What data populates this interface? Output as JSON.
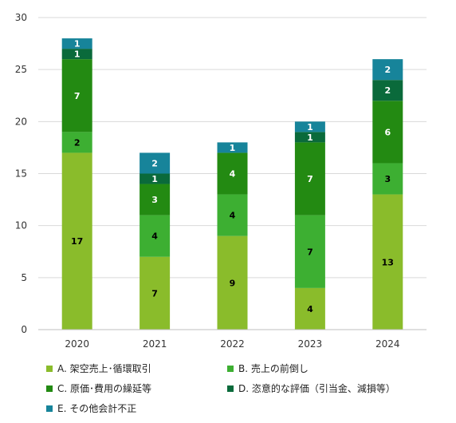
{
  "chart_data": {
    "type": "stacked-bar",
    "title": "",
    "xlabel": "",
    "ylabel": "",
    "categories": [
      "2020",
      "2021",
      "2022",
      "2023",
      "2024"
    ],
    "ylim": [
      0,
      30
    ],
    "yticks": [
      0,
      5,
      10,
      15,
      20,
      25,
      30
    ],
    "grid": true,
    "legend_position": "bottom",
    "series": [
      {
        "name": "A. 架空売上･循環取引",
        "color": "#8ABC2B",
        "label_color": "#000000",
        "values": [
          17,
          7,
          9,
          4,
          13
        ]
      },
      {
        "name": "B. 売上の前倒し",
        "color": "#3DAF32",
        "label_color": "#000000",
        "values": [
          2,
          4,
          4,
          7,
          3
        ]
      },
      {
        "name": "C. 原価･費用の繰延等",
        "color": "#238A12",
        "label_color": "#ffffff",
        "values": [
          7,
          3,
          4,
          7,
          6
        ]
      },
      {
        "name": "D. 恣意的な評価（引当金、減損等）",
        "color": "#0A6A3B",
        "label_color": "#ffffff",
        "values": [
          1,
          1,
          0,
          1,
          2
        ]
      },
      {
        "name": "E. その他会計不正",
        "color": "#17849A",
        "label_color": "#ffffff",
        "values": [
          1,
          2,
          1,
          1,
          2
        ]
      }
    ]
  }
}
